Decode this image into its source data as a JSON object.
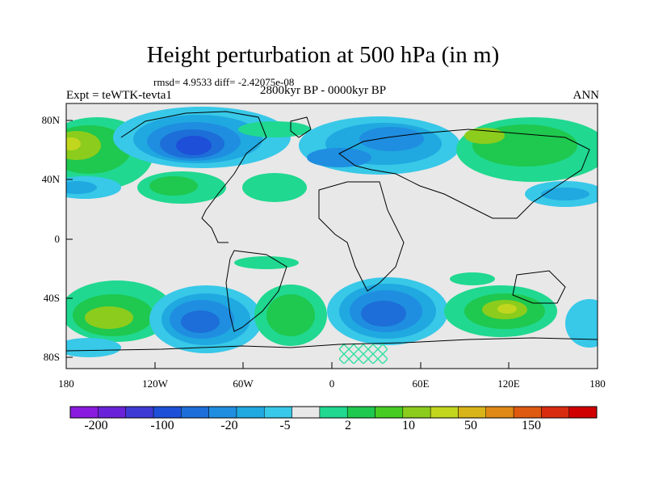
{
  "header": {
    "title": "Height perturbation at 500 hPa (in m)",
    "stats": "rmsd= 4.9533 diff= -2.42075e-08",
    "experiment": "Expt = teWTK-tevta1",
    "period": "2800kyr BP - 0000kyr BP",
    "season": "ANN"
  },
  "axes": {
    "lat_ticks": [
      "80N",
      "40N",
      "0",
      "40S",
      "80S"
    ],
    "lon_ticks": [
      "180",
      "120W",
      "60W",
      "0",
      "60E",
      "120E",
      "180"
    ]
  },
  "colorbar": {
    "labels": [
      "-200",
      "-100",
      "-20",
      "-5",
      "2",
      "10",
      "50",
      "150"
    ],
    "colors": [
      "#8a1ae0",
      "#6a22d8",
      "#3e3ad6",
      "#1e4fd8",
      "#1d6ed8",
      "#1f8ee0",
      "#20a8e0",
      "#38c8e8",
      "#e8e8e8",
      "#20d890",
      "#1fc84e",
      "#46cc22",
      "#8ccc1c",
      "#c2d61e",
      "#d8b418",
      "#de8a14",
      "#de5a10",
      "#d82c10",
      "#d00000"
    ]
  },
  "map": {
    "projection": "cylindrical equidistant",
    "extent": {
      "lon": [
        -180,
        180
      ],
      "lat": [
        -90,
        90
      ]
    },
    "anomaly_regions": [
      {
        "region": "Canada / Hudson Bay",
        "sign": "negative",
        "level": "-20"
      },
      {
        "region": "North Atlantic / Europe",
        "sign": "negative",
        "level": "-20"
      },
      {
        "region": "North Pacific",
        "sign": "positive",
        "level": "10"
      },
      {
        "region": "Siberia",
        "sign": "positive",
        "level": "10"
      },
      {
        "region": "South Pacific (~110W, 55S)",
        "sign": "negative",
        "level": "-20"
      },
      {
        "region": "South Atlantic / Indian Ocean (~20E, 55S)",
        "sign": "negative",
        "level": "-20"
      },
      {
        "region": "Southern Ocean near 120E",
        "sign": "positive",
        "level": "10"
      },
      {
        "region": "South Pacific near 160W",
        "sign": "positive",
        "level": "10"
      }
    ]
  }
}
